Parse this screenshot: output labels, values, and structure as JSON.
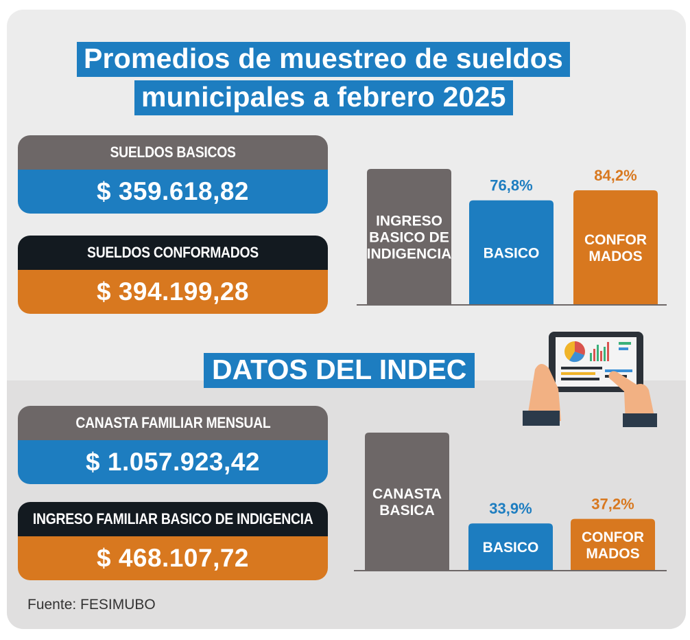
{
  "title": {
    "line1": "Promedios de muestreo de sueldos",
    "line2": "municipales a febrero 2025"
  },
  "boxes_top": [
    {
      "label": "SUELDOS BASICOS",
      "value": "$ 359.618,82",
      "head_color": "#6d6767",
      "value_color": "#1d7dc0"
    },
    {
      "label": "SUELDOS CONFORMADOS",
      "value": "$ 394.199,28",
      "head_color": "#131a20",
      "value_color": "#d8781f"
    }
  ],
  "section2_title": "DATOS DEL INDEC",
  "boxes_bottom": [
    {
      "label": "CANASTA FAMILIAR MENSUAL",
      "value": "$ 1.057.923,42",
      "head_color": "#6d6767",
      "value_color": "#1d7dc0"
    },
    {
      "label": "INGRESO FAMILIAR BASICO DE INDIGENCIA",
      "value": "$ 468.107,72",
      "head_color": "#131a20",
      "value_color": "#d8781f"
    }
  ],
  "source": "Fuente: FESIMUBO",
  "icon": "tablet-charts-hands-icon",
  "chart_data": [
    {
      "type": "bar",
      "categories": [
        [
          "INGRESO",
          "BASICO DE",
          "INDIGENCIA"
        ],
        [
          "BASICO"
        ],
        [
          "CONFOR",
          "MADOS"
        ]
      ],
      "values": [
        100,
        76.8,
        84.2
      ],
      "data_labels": [
        "",
        "76,8%",
        "84,2%"
      ],
      "colors": [
        "#6d6767",
        "#1d7dc0",
        "#d8781f"
      ],
      "ylim": [
        0,
        100
      ],
      "legend": "none",
      "grid": false
    },
    {
      "type": "bar",
      "categories": [
        [
          "CANASTA",
          "BASICA"
        ],
        [
          "BASICO"
        ],
        [
          "CONFOR",
          "MADOS"
        ]
      ],
      "values": [
        100,
        33.9,
        37.2
      ],
      "data_labels": [
        "",
        "33,9%",
        "37,2%"
      ],
      "colors": [
        "#6d6767",
        "#1d7dc0",
        "#d8781f"
      ],
      "ylim": [
        0,
        100
      ],
      "legend": "none",
      "grid": false
    }
  ]
}
